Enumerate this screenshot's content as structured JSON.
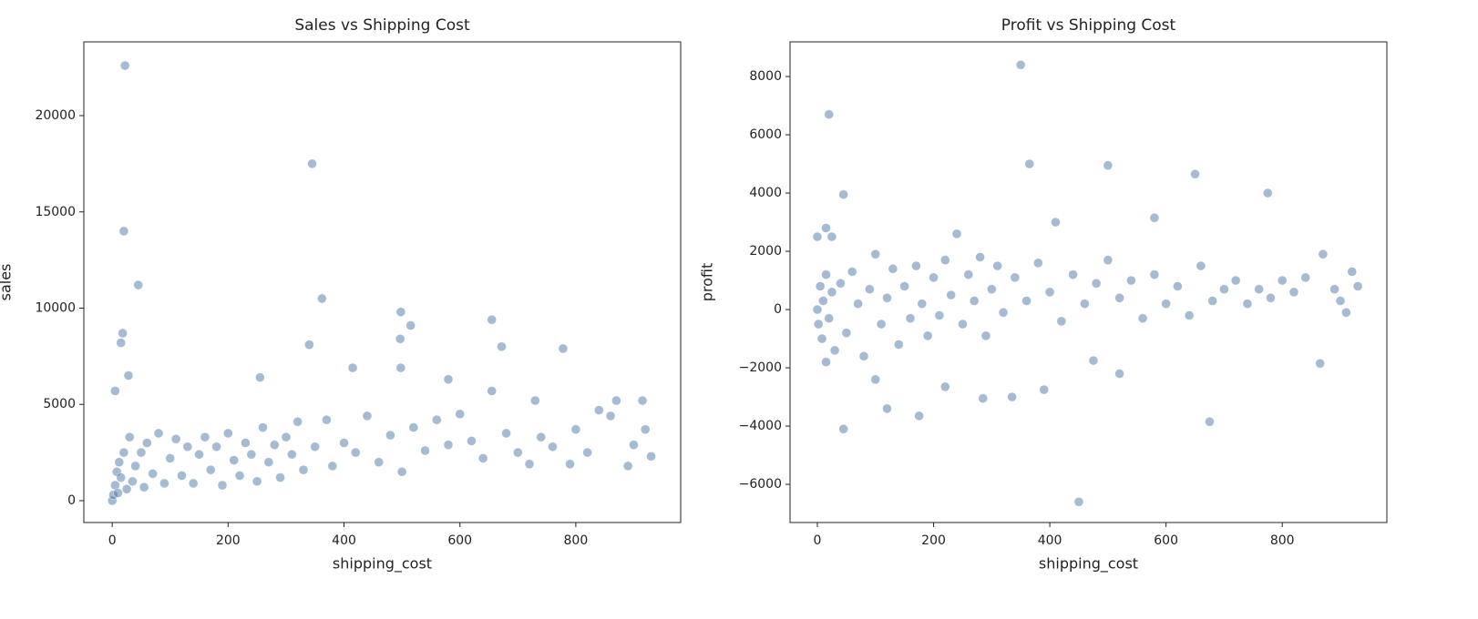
{
  "chart_data": [
    {
      "type": "scatter",
      "title": "Sales vs Shipping Cost",
      "xlabel": "shipping_cost",
      "ylabel": "sales",
      "color": "#4c78a8",
      "xlim": [
        -49,
        981
      ],
      "ylim": [
        -1135,
        23830
      ],
      "xticks": [
        0,
        200,
        400,
        600,
        800
      ],
      "yticks": [
        0,
        5000,
        10000,
        15000,
        20000
      ],
      "x": [
        22,
        345,
        20,
        45,
        362,
        18,
        15,
        340,
        498,
        497,
        515,
        655,
        672,
        778,
        415,
        498,
        28,
        255,
        5,
        580,
        870,
        915,
        730,
        655,
        0,
        2,
        5,
        8,
        10,
        12,
        15,
        20,
        25,
        30,
        35,
        40,
        50,
        55,
        60,
        70,
        80,
        90,
        100,
        110,
        120,
        130,
        140,
        150,
        160,
        170,
        180,
        190,
        200,
        210,
        220,
        230,
        240,
        250,
        260,
        270,
        280,
        290,
        300,
        310,
        320,
        330,
        350,
        370,
        380,
        400,
        420,
        440,
        460,
        480,
        500,
        520,
        540,
        560,
        580,
        600,
        620,
        640,
        680,
        700,
        720,
        740,
        760,
        790,
        800,
        820,
        840,
        860,
        890,
        900,
        920,
        930
      ],
      "values": [
        22600,
        17500,
        14000,
        11200,
        10500,
        8700,
        8200,
        8100,
        9800,
        8400,
        9100,
        9400,
        8000,
        7900,
        6900,
        6900,
        6500,
        6400,
        5700,
        6300,
        5200,
        5200,
        5200,
        5700,
        0,
        300,
        800,
        1500,
        400,
        2000,
        1200,
        2500,
        600,
        3300,
        1000,
        1800,
        2500,
        700,
        3000,
        1400,
        3500,
        900,
        2200,
        3200,
        1300,
        2800,
        900,
        2400,
        3300,
        1600,
        2800,
        800,
        3500,
        2100,
        1300,
        3000,
        2400,
        1000,
        3800,
        2000,
        2900,
        1200,
        3300,
        2400,
        4100,
        1600,
        2800,
        4200,
        1800,
        3000,
        2500,
        4400,
        2000,
        3400,
        1500,
        3800,
        2600,
        4200,
        2900,
        4500,
        3100,
        2200,
        3500,
        2500,
        1900,
        3300,
        2800,
        1900,
        3700,
        2500,
        4700,
        4400,
        1800,
        2900,
        3700,
        2300
      ]
    },
    {
      "type": "scatter",
      "title": "Profit vs Shipping Cost",
      "xlabel": "shipping_cost",
      "ylabel": "profit",
      "color": "#4c78a8",
      "xlim": [
        -47,
        980
      ],
      "ylim": [
        -7310,
        9190
      ],
      "xticks": [
        0,
        200,
        400,
        600,
        800
      ],
      "yticks": [
        {
          "value": -6000,
          "label": "−6000"
        },
        {
          "value": -4000,
          "label": "−4000"
        },
        {
          "value": -2000,
          "label": "−2000"
        },
        0,
        2000,
        4000,
        6000,
        8000
      ],
      "x": [
        350,
        20,
        365,
        500,
        650,
        45,
        775,
        580,
        410,
        15,
        0,
        25,
        45,
        675,
        450,
        175,
        120,
        285,
        335,
        390,
        865,
        520,
        100,
        220,
        15,
        475,
        0,
        2,
        5,
        8,
        10,
        15,
        20,
        25,
        30,
        40,
        50,
        60,
        70,
        80,
        90,
        100,
        110,
        120,
        130,
        140,
        150,
        160,
        170,
        180,
        190,
        200,
        210,
        220,
        230,
        240,
        250,
        260,
        270,
        280,
        290,
        300,
        310,
        320,
        340,
        360,
        380,
        400,
        420,
        440,
        460,
        480,
        500,
        520,
        540,
        560,
        580,
        600,
        620,
        640,
        660,
        680,
        700,
        720,
        740,
        760,
        780,
        800,
        820,
        840,
        870,
        890,
        900,
        910,
        920,
        930
      ],
      "values": [
        8400,
        6700,
        5000,
        4950,
        4650,
        3950,
        4000,
        3150,
        3000,
        2800,
        2500,
        2500,
        -4100,
        -3850,
        -6600,
        -3650,
        -3400,
        -3050,
        -3000,
        -2750,
        -1850,
        -2200,
        -2400,
        -2650,
        -1800,
        -1750,
        0,
        -500,
        800,
        -1000,
        300,
        1200,
        -300,
        600,
        -1400,
        900,
        -800,
        1300,
        200,
        -1600,
        700,
        1900,
        -500,
        400,
        1400,
        -1200,
        800,
        -300,
        1500,
        200,
        -900,
        1100,
        -200,
        1700,
        500,
        2600,
        -500,
        1200,
        300,
        1800,
        -900,
        700,
        1500,
        -100,
        1100,
        300,
        1600,
        600,
        -400,
        1200,
        200,
        900,
        1700,
        400,
        1000,
        -300,
        1200,
        200,
        800,
        -200,
        1500,
        300,
        700,
        1000,
        200,
        700,
        400,
        1000,
        600,
        1100,
        1900,
        700,
        300,
        -100,
        1300,
        800
      ]
    }
  ]
}
